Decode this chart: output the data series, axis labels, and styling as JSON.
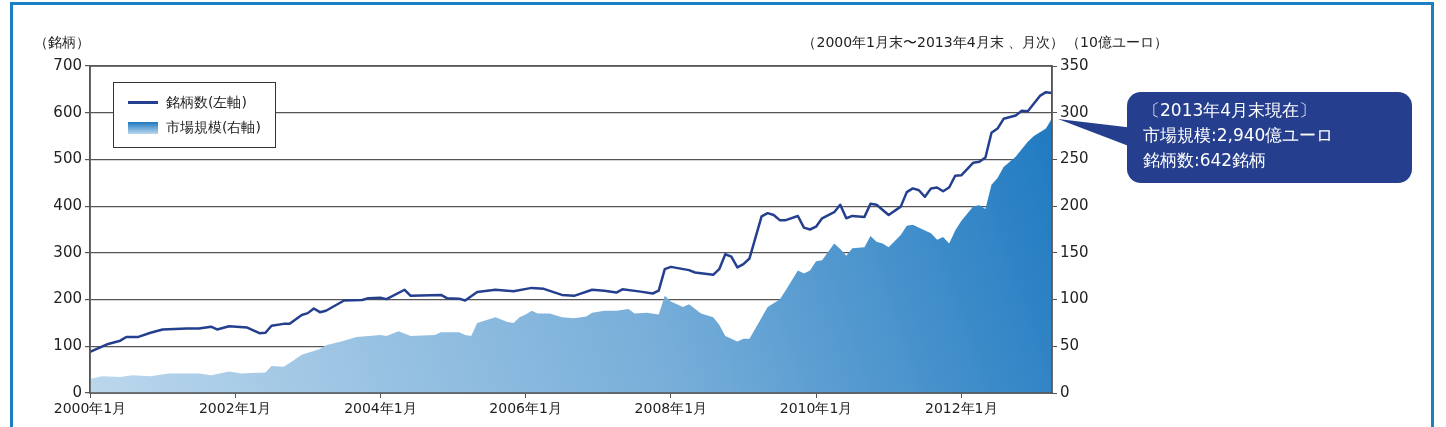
{
  "chart_data": {
    "type": "line",
    "subtitle": "（2000年1月末〜2013年4月末 、月次）",
    "ylabel": "（銘柄）",
    "y2label": "（10億ユーロ）",
    "annotations": [
      "〔2013年4月末現在〕",
      "市場規模:2,940億ユーロ",
      "銘柄数:642銘柄"
    ],
    "xlim": [
      "2000-01",
      "2013-04"
    ],
    "xticks": [
      {
        "value": "2000-01",
        "label": "2000年1月"
      },
      {
        "value": "2002-01",
        "label": "2002年1月"
      },
      {
        "value": "2004-01",
        "label": "2004年1月"
      },
      {
        "value": "2006-01",
        "label": "2006年1月"
      },
      {
        "value": "2008-01",
        "label": "2008年1月"
      },
      {
        "value": "2010-01",
        "label": "2010年1月"
      },
      {
        "value": "2012-01",
        "label": "2012年1月"
      }
    ],
    "ylim": [
      0,
      700
    ],
    "yticks": [
      0,
      100,
      200,
      300,
      400,
      500,
      600,
      700
    ],
    "y2lim": [
      0,
      350
    ],
    "y2ticks": [
      0,
      50,
      100,
      150,
      200,
      250,
      300,
      350
    ],
    "grid": "y",
    "legend": "top left",
    "marker": "none",
    "line_style": "solid",
    "series": [
      {
        "name": "銘柄数(左軸)",
        "type": "line",
        "color": "#253f8f",
        "x": [
          "2000-01",
          "2000-04",
          "2000-06",
          "2000-07",
          "2000-09",
          "2000-11",
          "2001-01",
          "2001-05",
          "2001-07",
          "2001-09",
          "2001-10",
          "2001-12",
          "2002-03",
          "2002-05",
          "2002-06",
          "2002-07",
          "2002-09",
          "2002-10",
          "2002-12",
          "2003-01",
          "2003-02",
          "2003-03",
          "2003-04",
          "2003-07",
          "2003-10",
          "2003-11",
          "2004-01",
          "2004-02",
          "2004-05",
          "2004-06",
          "2004-11",
          "2004-12",
          "2005-02",
          "2005-03",
          "2005-05",
          "2005-08",
          "2005-11",
          "2006-02",
          "2006-04",
          "2006-07",
          "2006-09",
          "2006-12",
          "2007-02",
          "2007-04",
          "2007-05",
          "2007-08",
          "2007-10",
          "2007-11",
          "2007-12",
          "2008-01",
          "2008-04",
          "2008-05",
          "2008-08",
          "2008-09",
          "2008-10",
          "2008-11",
          "2008-12",
          "2009-01",
          "2009-02",
          "2009-04",
          "2009-05",
          "2009-06",
          "2009-07",
          "2009-08",
          "2009-10",
          "2009-11",
          "2009-12",
          "2010-01",
          "2010-02",
          "2010-04",
          "2010-05",
          "2010-06",
          "2010-07",
          "2010-09",
          "2010-10",
          "2010-11",
          "2011-01",
          "2011-03",
          "2011-04",
          "2011-05",
          "2011-06",
          "2011-07",
          "2011-08",
          "2011-09",
          "2011-10",
          "2011-11",
          "2011-12",
          "2012-01",
          "2012-03",
          "2012-04",
          "2012-05",
          "2012-06",
          "2012-07",
          "2012-08",
          "2012-10",
          "2012-11",
          "2012-12",
          "2013-02",
          "2013-03",
          "2013-04"
        ],
        "values": [
          88,
          105,
          112,
          120,
          120,
          129,
          136,
          138,
          138,
          142,
          136,
          143,
          140,
          128,
          129,
          144,
          148,
          148,
          167,
          171,
          181,
          173,
          176,
          198,
          199,
          203,
          204,
          201,
          221,
          208,
          210,
          203,
          202,
          198,
          216,
          221,
          218,
          225,
          223,
          210,
          208,
          221,
          219,
          215,
          222,
          217,
          213,
          219,
          265,
          270,
          263,
          258,
          253,
          265,
          297,
          292,
          269,
          276,
          288,
          378,
          385,
          381,
          370,
          370,
          379,
          354,
          350,
          356,
          374,
          387,
          403,
          374,
          379,
          377,
          405,
          403,
          381,
          399,
          430,
          438,
          434,
          420,
          438,
          440,
          432,
          440,
          465,
          466,
          493,
          495,
          504,
          557,
          566,
          587,
          594,
          604,
          603,
          636,
          644,
          642
        ]
      },
      {
        "name": "市場規模(右軸)",
        "type": "area",
        "axis": "y2",
        "color": "#1c78c0",
        "x": [
          "2000-01",
          "2000-03",
          "2000-06",
          "2000-08",
          "2000-11",
          "2001-02",
          "2001-05",
          "2001-07",
          "2001-09",
          "2001-12",
          "2002-02",
          "2002-06",
          "2002-07",
          "2002-09",
          "2002-10",
          "2002-12",
          "2003-03",
          "2003-04",
          "2003-07",
          "2003-09",
          "2003-11",
          "2004-01",
          "2004-02",
          "2004-04",
          "2004-06",
          "2004-10",
          "2004-11",
          "2005-02",
          "2005-03",
          "2005-04",
          "2005-05",
          "2005-08",
          "2005-10",
          "2005-11",
          "2005-12",
          "2006-01",
          "2006-02",
          "2006-03",
          "2006-05",
          "2006-07",
          "2006-09",
          "2006-11",
          "2006-12",
          "2007-02",
          "2007-04",
          "2007-06",
          "2007-07",
          "2007-09",
          "2007-11",
          "2007-12",
          "2008-01",
          "2008-03",
          "2008-04",
          "2008-06",
          "2008-08",
          "2008-09",
          "2008-10",
          "2008-12",
          "2009-01",
          "2009-02",
          "2009-05",
          "2009-07",
          "2009-08",
          "2009-10",
          "2009-11",
          "2009-12",
          "2010-01",
          "2010-02",
          "2010-04",
          "2010-05",
          "2010-06",
          "2010-07",
          "2010-09",
          "2010-10",
          "2010-11",
          "2010-12",
          "2011-01",
          "2011-03",
          "2011-04",
          "2011-05",
          "2011-07",
          "2011-08",
          "2011-09",
          "2011-10",
          "2011-11",
          "2011-12",
          "2012-01",
          "2012-03",
          "2012-04",
          "2012-05",
          "2012-06",
          "2012-07",
          "2012-08",
          "2012-10",
          "2012-12",
          "2013-01",
          "2013-03",
          "2013-04"
        ],
        "values": [
          15,
          18,
          17,
          19,
          18,
          21,
          21,
          21,
          19,
          23,
          21,
          22,
          29,
          28,
          32,
          41,
          47,
          51,
          56,
          60,
          61,
          62,
          61,
          66,
          61,
          62,
          65,
          65,
          62,
          61,
          75,
          81,
          76,
          75,
          81,
          84,
          88,
          85,
          85,
          81,
          80,
          82,
          86,
          88,
          88,
          90,
          85,
          86,
          84,
          104,
          98,
          92,
          95,
          85,
          81,
          73,
          61,
          55,
          58,
          58,
          92,
          100,
          110,
          131,
          128,
          131,
          141,
          142,
          160,
          154,
          147,
          155,
          156,
          168,
          162,
          160,
          156,
          169,
          179,
          180,
          174,
          171,
          164,
          167,
          160,
          174,
          184,
          200,
          201,
          197,
          223,
          230,
          242,
          253,
          269,
          275,
          283,
          294
        ]
      }
    ]
  }
}
